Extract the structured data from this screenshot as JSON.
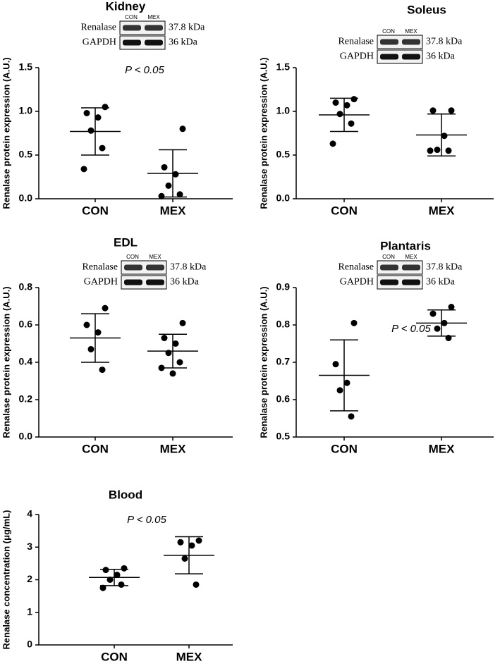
{
  "chart_data": [
    {
      "type": "dot",
      "title": "Kidney",
      "ylabel": "Renalase protein expression (A.U.)",
      "categories": [
        "CON",
        "MEX"
      ],
      "points": [
        [
          1.05,
          0.98,
          0.93,
          0.78,
          0.58,
          0.34
        ],
        [
          0.8,
          0.36,
          0.28,
          0.15,
          0.05,
          0.03
        ]
      ],
      "mean": [
        0.77,
        0.29
      ],
      "sd": [
        0.27,
        0.27
      ],
      "ylim": [
        0,
        1.5
      ],
      "yticks": [
        {
          "value": 0,
          "label": "0.0"
        },
        {
          "value": 0.5,
          "label": "0.5"
        },
        {
          "value": 1,
          "label": "1.0"
        },
        {
          "value": 1.5,
          "label": "1.5"
        }
      ],
      "annotation": "P < 0.05",
      "blot": {
        "lanes": [
          "CON",
          "MEX"
        ],
        "rows": [
          {
            "label": "Renalase",
            "size": "37.8 kDa"
          },
          {
            "label": "GAPDH",
            "size": "36 kDa"
          }
        ]
      }
    },
    {
      "type": "dot",
      "title": "Soleus",
      "ylabel": "Renalase protein expression (A.U.)",
      "categories": [
        "CON",
        "MEX"
      ],
      "points": [
        [
          1.14,
          1.1,
          1.07,
          0.97,
          0.86,
          0.63
        ],
        [
          1.01,
          1.01,
          0.72,
          0.56,
          0.55,
          0.55
        ]
      ],
      "mean": [
        0.96,
        0.73
      ],
      "sd": [
        0.19,
        0.24
      ],
      "ylim": [
        0,
        1.5
      ],
      "yticks": [
        {
          "value": 0,
          "label": "0.0"
        },
        {
          "value": 0.5,
          "label": "0.5"
        },
        {
          "value": 1,
          "label": "1.0"
        },
        {
          "value": 1.5,
          "label": "1.5"
        }
      ],
      "blot": {
        "lanes": [
          "CON",
          "MEX"
        ],
        "rows": [
          {
            "label": "Renalase",
            "size": "37.8 kDa"
          },
          {
            "label": "GAPDH",
            "size": "36 kDa"
          }
        ]
      }
    },
    {
      "type": "dot",
      "title": "EDL",
      "ylabel": "Renalase protein expression (A.U.)",
      "categories": [
        "CON",
        "MEX"
      ],
      "points": [
        [
          0.69,
          0.6,
          0.56,
          0.47,
          0.36
        ],
        [
          0.61,
          0.53,
          0.5,
          0.45,
          0.4,
          0.37,
          0.34
        ]
      ],
      "mean": [
        0.53,
        0.46
      ],
      "sd": [
        0.13,
        0.09
      ],
      "ylim": [
        0,
        0.8
      ],
      "yticks": [
        {
          "value": 0,
          "label": "0.0"
        },
        0.2,
        0.4,
        0.6,
        0.8
      ],
      "blot": {
        "lanes": [
          "CON",
          "MEX"
        ],
        "rows": [
          {
            "label": "Renalase",
            "size": "37.8 kDa"
          },
          {
            "label": "GAPDH",
            "size": "36 kDa"
          }
        ]
      }
    },
    {
      "type": "dot",
      "title": "Plantaris",
      "ylabel": "Renalase protein expression (A.U.)",
      "categories": [
        "CON",
        "MEX"
      ],
      "points": [
        [
          0.805,
          0.695,
          0.645,
          0.625,
          0.555
        ],
        [
          0.848,
          0.83,
          0.805,
          0.79,
          0.765
        ]
      ],
      "mean": [
        0.665,
        0.805
      ],
      "sd": [
        0.095,
        0.035
      ],
      "ylim": [
        0.5,
        0.9
      ],
      "yticks": [
        0.5,
        0.6,
        0.7,
        0.8,
        0.9
      ],
      "annotation": "P < 0.05",
      "blot": {
        "lanes": [
          "CON",
          "MEX"
        ],
        "rows": [
          {
            "label": "Renalase",
            "size": "37.8 kDa"
          },
          {
            "label": "GAPDH",
            "size": "36 kDa"
          }
        ]
      }
    },
    {
      "type": "dot",
      "title": "Blood",
      "ylabel": "Renalase concentration (μg/mL)",
      "categories": [
        "CON",
        "MEX"
      ],
      "points": [
        [
          2.35,
          2.3,
          2.15,
          2.0,
          1.85,
          1.75
        ],
        [
          3.2,
          3.15,
          3.05,
          2.65,
          1.85
        ]
      ],
      "mean": [
        2.07,
        2.75
      ],
      "sd": [
        0.25,
        0.57
      ],
      "ylim": [
        0,
        4
      ],
      "yticks": [
        0,
        1,
        2,
        3,
        4
      ],
      "annotation": "P < 0.05"
    }
  ]
}
